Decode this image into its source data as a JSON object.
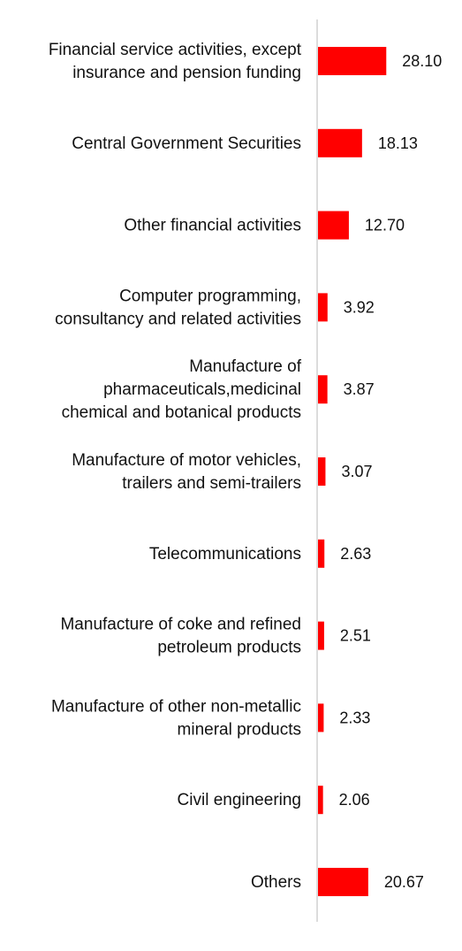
{
  "chart_data": {
    "type": "bar",
    "orientation": "horizontal",
    "title": "",
    "xlabel": "",
    "ylabel": "",
    "grid": false,
    "legend": "none",
    "bar_color": "#ff0000",
    "xlim": [
      0,
      100
    ],
    "categories": [
      [
        "Financial service activities, except",
        "insurance and pension funding"
      ],
      [
        "Central Government Securities"
      ],
      [
        "Other financial activities"
      ],
      [
        "Computer programming,",
        "consultancy and related activities"
      ],
      [
        "Manufacture of",
        "pharmaceuticals,medicinal",
        "chemical and botanical products"
      ],
      [
        "Manufacture of motor vehicles,",
        "trailers and semi-trailers"
      ],
      [
        "Telecommunications"
      ],
      [
        "Manufacture of coke and refined",
        "petroleum products"
      ],
      [
        "Manufacture of other non-metallic",
        "mineral products"
      ],
      [
        "Civil engineering"
      ],
      [
        "Others"
      ]
    ],
    "values": [
      28.1,
      18.13,
      12.7,
      3.92,
      3.87,
      3.07,
      2.63,
      2.51,
      2.33,
      2.06,
      20.67
    ],
    "value_labels": [
      "28.10",
      "18.13",
      "12.70",
      "3.92",
      "3.87",
      "3.07",
      "2.63",
      "2.51",
      "2.33",
      "2.06",
      "20.67"
    ]
  }
}
